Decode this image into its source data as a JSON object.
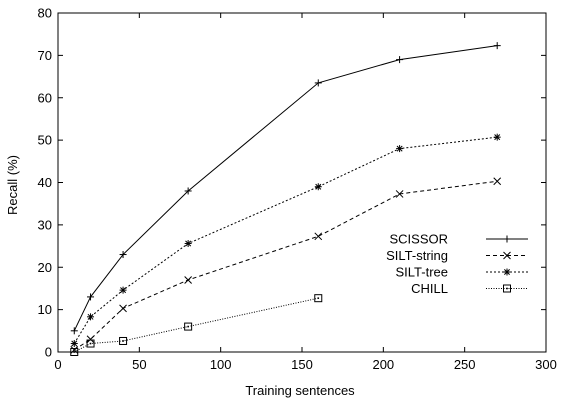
{
  "chart_data": {
    "type": "line",
    "xlabel": "Training sentences",
    "ylabel": "Recall (%)",
    "xlim": [
      0,
      300
    ],
    "ylim": [
      0,
      80
    ],
    "xticks": [
      0,
      50,
      100,
      150,
      200,
      250,
      300
    ],
    "yticks": [
      0,
      10,
      20,
      30,
      40,
      50,
      60,
      70,
      80
    ],
    "grid": false,
    "legend_position": "right",
    "series": [
      {
        "name": "SCISSOR",
        "marker": "plus",
        "dash": "solid",
        "x": [
          10,
          20,
          40,
          80,
          160,
          210,
          270
        ],
        "y": [
          5,
          13,
          23,
          38,
          63.5,
          69,
          72.3
        ]
      },
      {
        "name": "SILT-string",
        "marker": "cross",
        "dash": "dashed",
        "x": [
          10,
          20,
          40,
          80,
          160,
          210,
          270
        ],
        "y": [
          0.5,
          3,
          10.3,
          17,
          27.3,
          37.3,
          40.3
        ]
      },
      {
        "name": "SILT-tree",
        "marker": "asterisk",
        "dash": "short-dashed",
        "x": [
          10,
          20,
          40,
          80,
          160,
          210,
          270
        ],
        "y": [
          2,
          8.3,
          14.6,
          25.6,
          39,
          48,
          50.7
        ]
      },
      {
        "name": "CHILL",
        "marker": "square",
        "dash": "dotted",
        "x": [
          10,
          20,
          40,
          80,
          160
        ],
        "y": [
          0,
          2,
          2.6,
          6,
          12.7
        ]
      }
    ]
  }
}
